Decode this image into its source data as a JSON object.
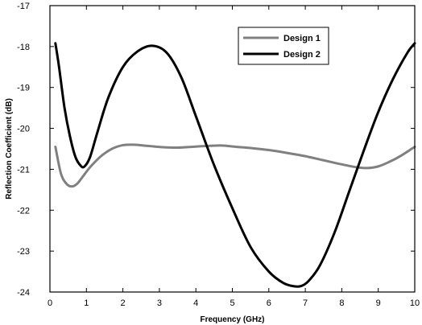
{
  "chart_data": {
    "type": "line",
    "xlabel": "Frequency (GHz)",
    "ylabel": "Reflection Coefficient (dB)",
    "xlim": [
      0,
      10
    ],
    "ylim": [
      -24,
      -17
    ],
    "xticks": [
      "0",
      "1",
      "2",
      "3",
      "4",
      "5",
      "6",
      "7",
      "8",
      "9",
      "10"
    ],
    "yticks": [
      "-17",
      "-18",
      "-19",
      "-20",
      "-21",
      "-22",
      "-23",
      "-24"
    ],
    "grid": false,
    "legend_position": "top-right",
    "series": [
      {
        "name": "Design 1",
        "color": "#808080",
        "x": [
          0.15,
          0.3,
          0.45,
          0.6,
          0.75,
          0.9,
          1.1,
          1.4,
          1.7,
          2.0,
          2.3,
          2.7,
          3.1,
          3.5,
          3.9,
          4.3,
          4.7,
          5.1,
          5.5,
          6.0,
          6.5,
          7.0,
          7.5,
          8.0,
          8.4,
          8.7,
          9.0,
          9.3,
          9.6,
          10.0
        ],
        "y": [
          -20.45,
          -21.1,
          -21.35,
          -21.42,
          -21.35,
          -21.18,
          -20.95,
          -20.68,
          -20.5,
          -20.41,
          -20.4,
          -20.43,
          -20.46,
          -20.47,
          -20.45,
          -20.43,
          -20.42,
          -20.45,
          -20.48,
          -20.53,
          -20.6,
          -20.68,
          -20.78,
          -20.88,
          -20.95,
          -20.97,
          -20.93,
          -20.82,
          -20.68,
          -20.45
        ]
      },
      {
        "name": "Design 2",
        "color": "#000000",
        "x": [
          0.15,
          0.25,
          0.4,
          0.55,
          0.7,
          0.85,
          0.95,
          1.1,
          1.3,
          1.6,
          2.0,
          2.4,
          2.8,
          3.2,
          3.6,
          4.0,
          4.5,
          5.0,
          5.5,
          6.0,
          6.4,
          6.7,
          6.9,
          7.1,
          7.4,
          7.8,
          8.2,
          8.6,
          9.0,
          9.4,
          9.8,
          10.0
        ],
        "y": [
          -17.92,
          -18.5,
          -19.5,
          -20.2,
          -20.7,
          -20.92,
          -20.93,
          -20.7,
          -20.1,
          -19.25,
          -18.5,
          -18.12,
          -17.98,
          -18.15,
          -18.75,
          -19.7,
          -20.9,
          -21.95,
          -22.9,
          -23.5,
          -23.78,
          -23.86,
          -23.85,
          -23.72,
          -23.35,
          -22.55,
          -21.55,
          -20.55,
          -19.6,
          -18.8,
          -18.15,
          -17.92
        ]
      }
    ]
  }
}
